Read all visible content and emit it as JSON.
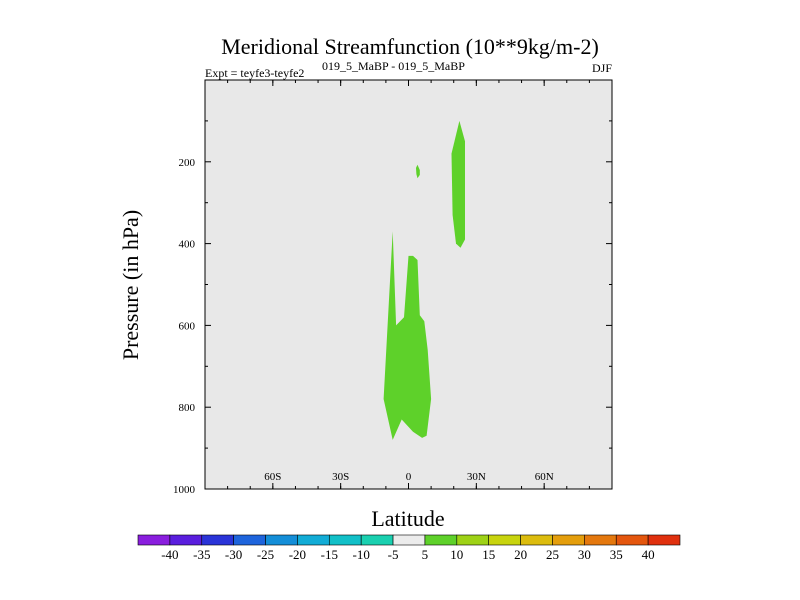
{
  "chart_data": {
    "type": "contour",
    "title": "Meridional Streamfunction (10**9kg/m-2)",
    "subtitle_left": "Expt = teyfe3-teyfe2",
    "subtitle_center": "019_5_MaBP - 019_5_MaBP",
    "subtitle_right": "DJF",
    "xlabel": "Latitude",
    "ylabel": "Pressure (in hPa)",
    "xlim": [
      -90,
      90
    ],
    "ylim": [
      1000,
      0
    ],
    "xticks": [
      {
        "value": -60,
        "label": "60S"
      },
      {
        "value": -30,
        "label": "30S"
      },
      {
        "value": 0,
        "label": "0"
      },
      {
        "value": 30,
        "label": "30N"
      },
      {
        "value": 60,
        "label": "60N"
      }
    ],
    "yticks": [
      {
        "value": 200,
        "label": "200"
      },
      {
        "value": 400,
        "label": "400"
      },
      {
        "value": 600,
        "label": "600"
      },
      {
        "value": 800,
        "label": "800"
      },
      {
        "value": 1000,
        "label": "1000"
      }
    ],
    "background_color": "#e8e8e8",
    "contour_regions": [
      {
        "name": "positive-5-10-tropics",
        "level": "5 to 10",
        "color": "#5ed12a",
        "polygon": [
          [
            -7,
            370
          ],
          [
            -5.5,
            600
          ],
          [
            -2,
            580
          ],
          [
            0,
            430
          ],
          [
            2,
            430
          ],
          [
            4,
            440
          ],
          [
            5,
            575
          ],
          [
            7,
            590
          ],
          [
            8.5,
            660
          ],
          [
            10,
            780
          ],
          [
            8,
            870
          ],
          [
            6,
            875
          ],
          [
            2,
            860
          ],
          [
            -3,
            830
          ],
          [
            -7,
            880
          ],
          [
            -11,
            780
          ]
        ]
      },
      {
        "name": "positive-5-10-upper",
        "level": "5 to 10",
        "color": "#5ed12a",
        "polygon": [
          [
            22.5,
            100
          ],
          [
            25,
            150
          ],
          [
            25,
            390
          ],
          [
            23,
            410
          ],
          [
            21,
            400
          ],
          [
            19.5,
            330
          ],
          [
            19,
            180
          ]
        ]
      },
      {
        "name": "positive-5-10-blob",
        "level": "5 to 10",
        "color": "#5ed12a",
        "polygon": [
          [
            4,
            207
          ],
          [
            5,
            220
          ],
          [
            5,
            232
          ],
          [
            4,
            240
          ],
          [
            3.5,
            230
          ],
          [
            3.3,
            215
          ]
        ]
      }
    ],
    "colorbar": {
      "labels": [
        "-40",
        "-35",
        "-30",
        "-25",
        "-20",
        "-15",
        "-10",
        "-5",
        "5",
        "10",
        "15",
        "20",
        "25",
        "30",
        "35",
        "40"
      ],
      "colors": [
        "#8a1ede",
        "#5a1ede",
        "#2a34d8",
        "#1e64dc",
        "#148ed8",
        "#12acd6",
        "#12c0c8",
        "#1ad0b0",
        "#ececec",
        "#5ed12a",
        "#9ed216",
        "#c8d40e",
        "#dcbc0e",
        "#e49e0c",
        "#e4780e",
        "#e4560e",
        "#e0300e"
      ]
    }
  }
}
